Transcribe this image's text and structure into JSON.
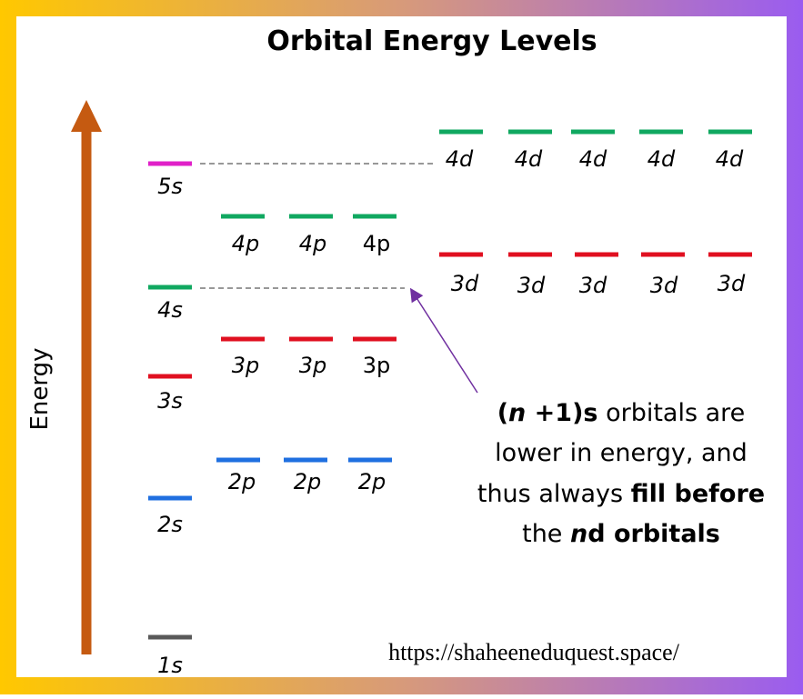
{
  "header": {
    "title": "Orbital Energy Levels"
  },
  "axis": {
    "label": "Energy"
  },
  "orbitals": {
    "s": [
      "1s",
      "2s",
      "3s",
      "4s",
      "5s"
    ],
    "p2": [
      "2p",
      "2p",
      "2p"
    ],
    "p3": [
      "3p",
      "3p",
      "3p"
    ],
    "p4": [
      "4p",
      "4p",
      "4p"
    ],
    "d3": [
      "3d",
      "3d",
      "3d",
      "3d",
      "3d"
    ],
    "d4": [
      "4d",
      "4d",
      "4d",
      "4d",
      "4d"
    ]
  },
  "annotation": [
    [
      "(",
      "n",
      " +1)s",
      " orbitals are"
    ],
    [
      "lower in energy, and"
    ],
    [
      "thus always ",
      "fill before"
    ],
    [
      "the ",
      "n",
      "d orbitals"
    ]
  ],
  "footer": {
    "url": "https://shaheeneduquest.space/"
  }
}
